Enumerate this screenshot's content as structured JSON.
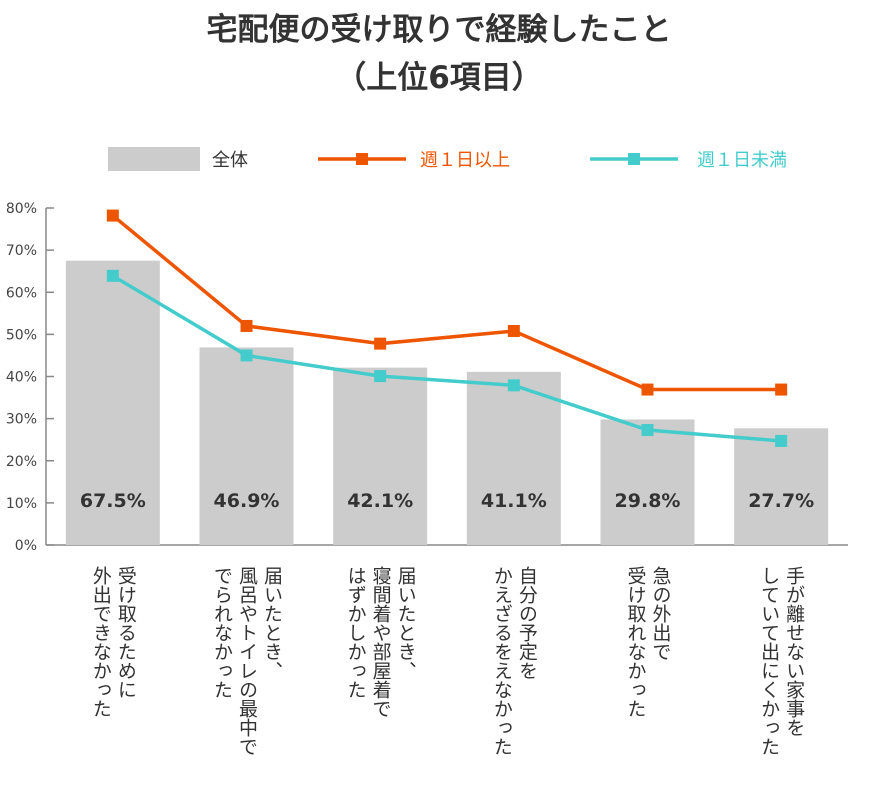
{
  "chart_data": {
    "type": "bar+line",
    "title": [
      "宅配便の受け取りで経験したこと",
      "（上位6項目）"
    ],
    "categories": [
      [
        "受け取るために",
        "外出できなかった"
      ],
      [
        "届いたとき、",
        "風呂やトイレの最中で",
        "でられなかった"
      ],
      [
        "届いたとき、",
        "寝間着や部屋着で",
        "はずかしかった"
      ],
      [
        "自分の予定を",
        "かえざるをえなかった"
      ],
      [
        "急の外出で",
        "受け取れなかった"
      ],
      [
        "手が離せない家事を",
        "していて出にくかった"
      ]
    ],
    "series": [
      {
        "name": "全体",
        "type": "bar",
        "color": "#cccccc",
        "values": [
          67.5,
          46.9,
          42.1,
          41.1,
          29.8,
          27.7
        ],
        "labels": [
          "67.5%",
          "46.9%",
          "42.1%",
          "41.1%",
          "29.8%",
          "27.7%"
        ]
      },
      {
        "name": "週１日以上",
        "type": "line",
        "color": "#ee5500",
        "values": [
          78.2,
          52.0,
          47.8,
          50.8,
          36.9,
          36.9
        ]
      },
      {
        "name": "週１日未満",
        "type": "line",
        "color": "#44cccc",
        "values": [
          63.9,
          45.0,
          40.1,
          37.9,
          27.3,
          24.7
        ]
      }
    ],
    "yticks": [
      "0%",
      "10%",
      "20%",
      "30%",
      "40%",
      "50%",
      "60%",
      "70%",
      "80%"
    ],
    "ylim": [
      0,
      80
    ],
    "legend": "top",
    "grid": false
  }
}
